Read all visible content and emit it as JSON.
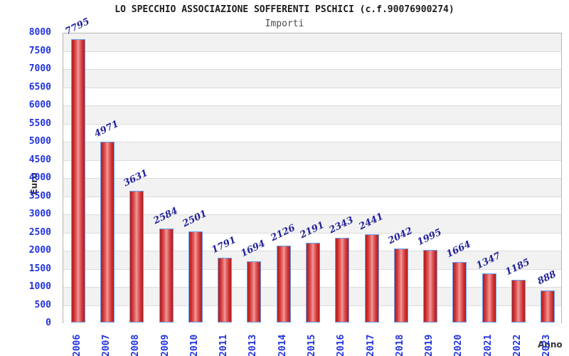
{
  "header": {
    "title": "LO SPECCHIO ASSOCIAZIONE SOFFERENTI PSCHICI (c.f.90076900274)",
    "subtitle": "Importi"
  },
  "chart_data": {
    "type": "bar",
    "title": "LO SPECCHIO ASSOCIAZIONE SOFFERENTI PSCHICI (c.f.90076900274)",
    "subtitle": "Importi",
    "xlabel": "Anno",
    "ylabel": "Euro",
    "categories": [
      "2006",
      "2007",
      "2008",
      "2009",
      "2010",
      "2011",
      "2013",
      "2014",
      "2015",
      "2016",
      "2017",
      "2018",
      "2019",
      "2020",
      "2021",
      "2022",
      "2023"
    ],
    "values": [
      7795,
      4971,
      3631,
      2584,
      2501,
      1791,
      1694,
      2126,
      2191,
      2343,
      2441,
      2042,
      1995,
      1664,
      1347,
      1185,
      888
    ],
    "ylim": [
      0,
      8000
    ],
    "ytick_step": 500,
    "yticks": [
      0,
      500,
      1000,
      1500,
      2000,
      2500,
      3000,
      3500,
      4000,
      4500,
      5000,
      5500,
      6000,
      6500,
      7000,
      7500,
      8000
    ],
    "grid": "horizontal-bands",
    "legend": null,
    "colors": {
      "bar_fill_dark": "#b51b1b",
      "bar_fill_light": "#f29c9c",
      "bar_border": "#64a0f0",
      "tick_label": "#2233dd",
      "value_label": "#222299",
      "band_gray": "#f2f2f2",
      "band_white": "#ffffff",
      "plot_border": "#b5b5b5",
      "title": "#1c1c1c",
      "subtitle": "#4a4a4a",
      "axis_title": "#333333"
    }
  }
}
